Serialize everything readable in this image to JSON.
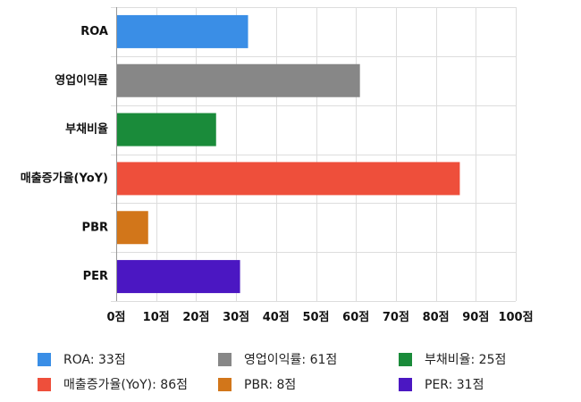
{
  "chart_data": {
    "type": "bar",
    "orientation": "horizontal",
    "categories": [
      "ROA",
      "영업이익률",
      "부채비율",
      "매출증가율(YoY)",
      "PBR",
      "PER"
    ],
    "values": [
      33,
      61,
      25,
      86,
      8,
      31
    ],
    "colors": [
      "#3a8ee6",
      "#878787",
      "#1a8b3a",
      "#ee4f3b",
      "#d2761a",
      "#4b17c2"
    ],
    "xlim": [
      0,
      100
    ],
    "xticks": [
      0,
      10,
      20,
      30,
      40,
      50,
      60,
      70,
      80,
      90,
      100
    ],
    "tick_suffix": "점",
    "grid": true,
    "legend_position": "bottom"
  },
  "legend": [
    {
      "text": "ROA: 33점",
      "color": "#3a8ee6"
    },
    {
      "text": "영업이익률: 61점",
      "color": "#878787"
    },
    {
      "text": "부채비율: 25점",
      "color": "#1a8b3a"
    },
    {
      "text": "매출증가율(YoY): 86점",
      "color": "#ee4f3b"
    },
    {
      "text": "PBR: 8점",
      "color": "#d2761a"
    },
    {
      "text": "PER: 31점",
      "color": "#4b17c2"
    }
  ]
}
